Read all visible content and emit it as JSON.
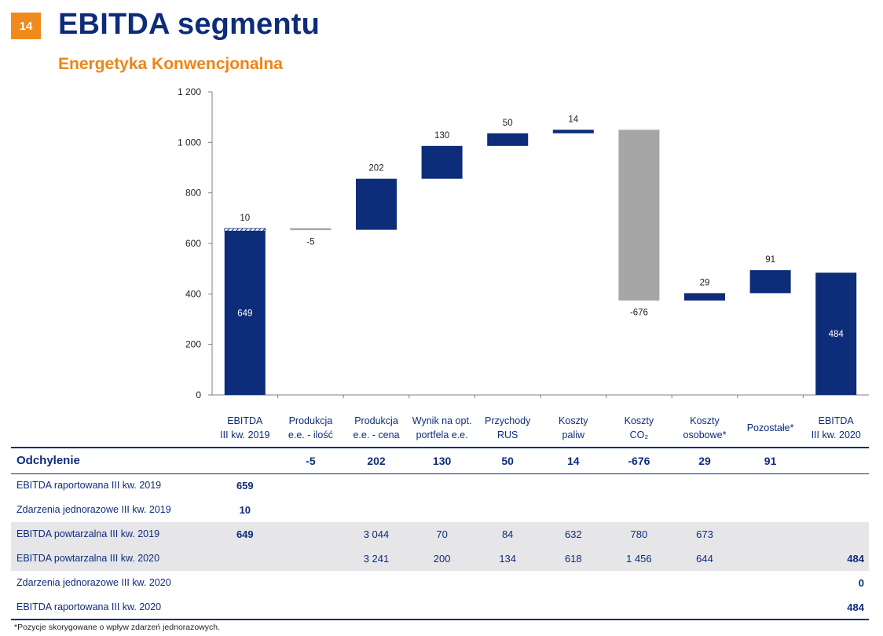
{
  "header": {
    "page_number": "14",
    "title": "EBITDA segmentu",
    "subtitle": "Energetyka Konwencjonalna"
  },
  "colors": {
    "navy": "#0d2c7a",
    "orange": "#f08a1c",
    "gray": "#a6a6a6"
  },
  "chart_data": {
    "type": "waterfall",
    "ylim": [
      0,
      1200
    ],
    "yticks": [
      0,
      200,
      400,
      600,
      800,
      1000,
      1200
    ],
    "ytick_labels": [
      "0",
      "200",
      "400",
      "600",
      "800",
      "1 000",
      "1 200"
    ],
    "categories": [
      [
        "EBITDA",
        "III kw. 2019"
      ],
      [
        "Produkcja",
        "e.e. - ilość"
      ],
      [
        "Produkcja",
        "e.e. - cena"
      ],
      [
        "Wynik na opt.",
        "portfela e.e."
      ],
      [
        "Przychody",
        "RUS"
      ],
      [
        "Koszty",
        "paliw"
      ],
      [
        "Koszty",
        "CO₂"
      ],
      [
        "Koszty",
        "osobowe*"
      ],
      [
        "Pozostałe*"
      ],
      [
        "EBITDA",
        "III kw. 2020"
      ]
    ],
    "bars": [
      {
        "kind": "total",
        "value": 649,
        "label": "649",
        "hatched_top": 10,
        "hatched_label": "10"
      },
      {
        "kind": "delta",
        "value": -5,
        "label": "-5"
      },
      {
        "kind": "delta",
        "value": 202,
        "label": "202"
      },
      {
        "kind": "delta",
        "value": 130,
        "label": "130"
      },
      {
        "kind": "delta",
        "value": 50,
        "label": "50"
      },
      {
        "kind": "delta",
        "value": 14,
        "label": "14"
      },
      {
        "kind": "delta",
        "value": -676,
        "label": "-676"
      },
      {
        "kind": "delta",
        "value": 29,
        "label": "29"
      },
      {
        "kind": "delta",
        "value": 91,
        "label": "91"
      },
      {
        "kind": "total",
        "value": 484,
        "label": "484"
      }
    ]
  },
  "table": {
    "deviation_label": "Odchylenie",
    "deviation_values": [
      "",
      "-5",
      "202",
      "130",
      "50",
      "14",
      "-676",
      "29",
      "91",
      ""
    ],
    "rows": [
      {
        "label": "EBITDA raportowana III kw. 2019",
        "values": [
          "659",
          "",
          "",
          "",
          "",
          "",
          "",
          "",
          "",
          ""
        ],
        "shaded": false
      },
      {
        "label": "Zdarzenia jednorazowe III kw. 2019",
        "values": [
          "10",
          "",
          "",
          "",
          "",
          "",
          "",
          "",
          "",
          ""
        ],
        "shaded": false
      },
      {
        "label": "EBITDA powtarzalna III kw. 2019",
        "values": [
          "649",
          "",
          "3 044",
          "70",
          "84",
          "632",
          "780",
          "673",
          "",
          ""
        ],
        "shaded": true
      },
      {
        "label": "EBITDA powtarzalna III kw. 2020",
        "values": [
          "",
          "",
          "3 241",
          "200",
          "134",
          "618",
          "1 456",
          "644",
          "",
          "484"
        ],
        "shaded": true
      },
      {
        "label": "Zdarzenia jednorazowe III kw. 2020",
        "values": [
          "",
          "",
          "",
          "",
          "",
          "",
          "",
          "",
          "",
          "0"
        ],
        "shaded": false
      },
      {
        "label": "EBITDA raportowana III kw. 2020",
        "values": [
          "",
          "",
          "",
          "",
          "",
          "",
          "",
          "",
          "",
          "484"
        ],
        "shaded": false
      }
    ]
  },
  "footnote": "*Pozycje skorygowane o wpływ zdarzeń jednorazowych."
}
